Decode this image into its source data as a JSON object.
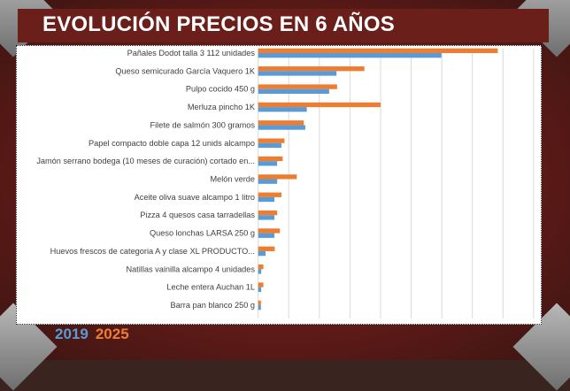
{
  "title": "EVOLUCIÓN PRECIOS EN 6 AÑOS",
  "colors": {
    "2019": "#5b9bd5",
    "2025": "#ed7d31"
  },
  "chart_data": {
    "type": "bar",
    "orientation": "horizontal",
    "title": "EVOLUCIÓN PRECIOS EN 6 AÑOS",
    "categories": [
      "Pañales Dodot talla 3 112 unidades",
      "Queso semicurado García Vaquero 1K",
      "Pulpo cocido 450 g",
      "Merluza pincho  1K",
      "Filete de salmón 300 gramos",
      "Papel compacto doble capa 12 unids alcampo",
      "Jamón serrano bodega (10 meses de curación) cortado en...",
      "Melón verde",
      "Aceite oliva suave alcampo 1 litro",
      "Pizza 4 quesos casa tarradellas",
      "Queso lonchas LARSA 250 g",
      "Huevos frescos de categoria A y clase XL PRODUCTO...",
      "Natillas vainilla alcampo 4 unidades",
      "Leche entera Auchan 1L",
      "Barra pan blanco 250 g"
    ],
    "series": [
      {
        "name": "2019",
        "values": [
          5.99,
          2.56,
          2.32,
          1.59,
          1.54,
          0.76,
          0.62,
          0.62,
          0.53,
          0.53,
          0.53,
          0.24,
          0.1,
          0.1,
          0.09
        ]
      },
      {
        "name": "2025",
        "values": [
          7.83,
          3.47,
          2.58,
          4.0,
          1.49,
          0.86,
          0.8,
          1.26,
          0.76,
          0.62,
          0.71,
          0.54,
          0.17,
          0.17,
          0.09
        ]
      }
    ],
    "xlim": [
      0,
      9
    ],
    "grid": true,
    "legend": [
      "2019",
      "2025"
    ],
    "legend_placement": "bottom-left"
  }
}
